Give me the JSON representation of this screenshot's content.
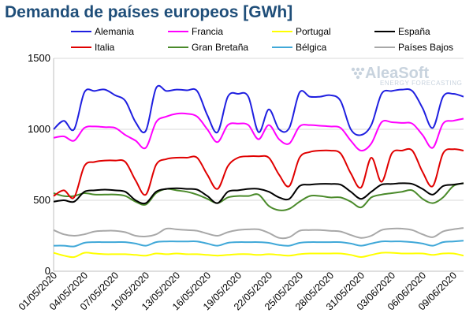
{
  "chart_data": {
    "type": "line",
    "title": "Demanda de países europeos [GWh]",
    "ylim": [
      0,
      1500
    ],
    "yticks": [
      0,
      500,
      1000,
      1500
    ],
    "xtick_labels": [
      "01/05/2020",
      "04/05/2020",
      "07/05/2020",
      "10/05/2020",
      "13/05/2020",
      "16/05/2020",
      "19/05/2020",
      "22/05/2020",
      "25/05/2020",
      "28/05/2020",
      "31/05/2020",
      "03/06/2020",
      "06/06/2020",
      "09/06/2020"
    ],
    "x": [
      "01/05",
      "02/05",
      "03/05",
      "04/05",
      "05/05",
      "06/05",
      "07/05",
      "08/05",
      "09/05",
      "10/05",
      "11/05",
      "12/05",
      "13/05",
      "14/05",
      "15/05",
      "16/05",
      "17/05",
      "18/05",
      "19/05",
      "20/05",
      "21/05",
      "22/05",
      "23/05",
      "24/05",
      "25/05",
      "26/05",
      "27/05",
      "28/05",
      "29/05",
      "30/05",
      "31/05",
      "01/06",
      "02/06",
      "03/06",
      "04/06",
      "05/06",
      "06/06",
      "07/06",
      "08/06",
      "09/06",
      "10/06"
    ],
    "grid": true,
    "legend_position": "top",
    "watermark": {
      "brand": "AleaSoft",
      "tagline": "ENERGY FORECASTING"
    },
    "series": [
      {
        "name": "Alemania",
        "color": "#1f1fe0",
        "values": [
          1000,
          1060,
          1000,
          1260,
          1270,
          1280,
          1240,
          1200,
          1050,
          990,
          1290,
          1270,
          1280,
          1275,
          1270,
          1100,
          980,
          1230,
          1250,
          1230,
          980,
          1140,
          1000,
          1010,
          1260,
          1230,
          1230,
          1240,
          1200,
          1000,
          960,
          1030,
          1250,
          1270,
          1280,
          1270,
          1150,
          1010,
          1230,
          1250,
          1230
        ]
      },
      {
        "name": "Francia",
        "color": "#ff00ff",
        "values": [
          940,
          950,
          920,
          1010,
          1020,
          1015,
          1010,
          960,
          920,
          870,
          1050,
          1090,
          1110,
          1110,
          1090,
          1000,
          910,
          1030,
          1040,
          1030,
          930,
          1030,
          930,
          900,
          1020,
          1030,
          1025,
          1020,
          1010,
          920,
          850,
          900,
          1050,
          1050,
          1045,
          1040,
          960,
          870,
          1040,
          1060,
          1075
        ]
      },
      {
        "name": "Portugal",
        "color": "#ffff00",
        "values": [
          130,
          110,
          100,
          130,
          125,
          120,
          120,
          120,
          115,
          110,
          125,
          120,
          125,
          120,
          120,
          115,
          110,
          115,
          120,
          120,
          115,
          120,
          115,
          110,
          120,
          125,
          125,
          125,
          125,
          115,
          100,
          115,
          130,
          130,
          125,
          125,
          125,
          115,
          125,
          125,
          110
        ]
      },
      {
        "name": "España",
        "color": "#000000",
        "values": [
          490,
          500,
          490,
          560,
          570,
          575,
          570,
          560,
          500,
          480,
          560,
          580,
          585,
          580,
          575,
          530,
          480,
          560,
          570,
          580,
          580,
          560,
          520,
          510,
          600,
          610,
          615,
          615,
          610,
          560,
          510,
          560,
          610,
          615,
          620,
          615,
          580,
          540,
          600,
          610,
          620
        ]
      },
      {
        "name": "Italia",
        "color": "#e00000",
        "values": [
          530,
          570,
          520,
          740,
          770,
          780,
          780,
          770,
          640,
          540,
          750,
          790,
          800,
          800,
          800,
          680,
          580,
          740,
          800,
          810,
          810,
          800,
          680,
          600,
          800,
          840,
          850,
          850,
          830,
          690,
          590,
          800,
          630,
          830,
          850,
          850,
          700,
          600,
          830,
          860,
          850
        ]
      },
      {
        "name": "Gran Bretaña",
        "color": "#4a8a2a",
        "values": [
          550,
          530,
          530,
          550,
          540,
          540,
          540,
          530,
          490,
          470,
          550,
          580,
          570,
          560,
          540,
          510,
          480,
          520,
          530,
          530,
          540,
          460,
          430,
          440,
          490,
          530,
          530,
          520,
          520,
          490,
          450,
          520,
          540,
          550,
          560,
          570,
          510,
          480,
          520,
          600,
          620
        ]
      },
      {
        "name": "Bélgica",
        "color": "#40a8d8",
        "values": [
          180,
          180,
          175,
          200,
          205,
          205,
          205,
          205,
          195,
          180,
          205,
          210,
          210,
          210,
          210,
          195,
          180,
          200,
          205,
          205,
          205,
          200,
          185,
          180,
          200,
          205,
          205,
          205,
          205,
          195,
          180,
          195,
          210,
          210,
          210,
          205,
          195,
          180,
          205,
          210,
          215
        ]
      },
      {
        "name": "Países Bajos",
        "color": "#a8a8a8",
        "values": [
          290,
          260,
          250,
          260,
          280,
          285,
          285,
          275,
          250,
          245,
          260,
          300,
          295,
          290,
          285,
          265,
          250,
          275,
          290,
          295,
          295,
          270,
          235,
          240,
          285,
          290,
          290,
          285,
          280,
          255,
          235,
          250,
          290,
          300,
          300,
          290,
          260,
          240,
          280,
          295,
          305
        ]
      }
    ]
  }
}
